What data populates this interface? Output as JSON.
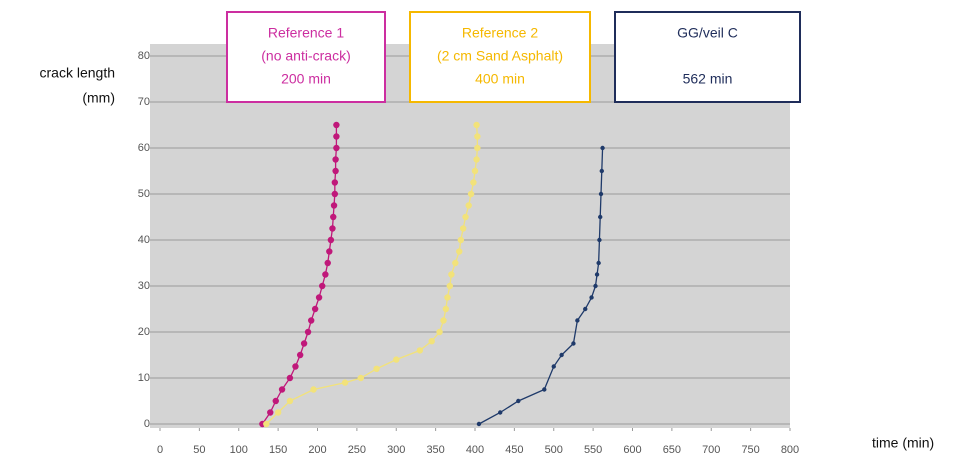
{
  "chart_data": {
    "type": "scatter-line",
    "y_label": [
      "crack length",
      "(mm)"
    ],
    "x_label": "time (min)",
    "xlim": [
      0,
      800
    ],
    "xticks": [
      0,
      50,
      100,
      150,
      200,
      250,
      300,
      350,
      400,
      450,
      500,
      550,
      600,
      650,
      700,
      750,
      800
    ],
    "ylim": [
      0,
      80
    ],
    "yticks": [
      0,
      10,
      20,
      30,
      40,
      50,
      60,
      70,
      80
    ],
    "grid": true,
    "series": [
      {
        "name": "Reference 1",
        "color": "#c0187a",
        "box_color": "#cc2ea0",
        "note": [
          "(no anti-crack)",
          "200 min"
        ],
        "x": [
          130,
          140,
          147,
          155,
          165,
          172,
          178,
          183,
          188,
          192,
          197,
          202,
          206,
          210,
          213,
          215,
          217,
          219,
          220,
          221,
          222,
          222,
          223,
          223,
          224,
          224,
          224
        ],
        "values": [
          0,
          2.5,
          5,
          7.5,
          10,
          12.5,
          15,
          17.5,
          20,
          22.5,
          25,
          27.5,
          30,
          32.5,
          35,
          37.5,
          40,
          42.5,
          45,
          47.5,
          50,
          52.5,
          55,
          57.5,
          60,
          62.5,
          65
        ]
      },
      {
        "name": "Reference 2",
        "color": "#f2e27a",
        "box_color": "#f5b800",
        "note": [
          "(2 cm Sand Asphalt)",
          "400 min"
        ],
        "x": [
          135,
          150,
          165,
          195,
          235,
          255,
          275,
          300,
          330,
          345,
          355,
          360,
          363,
          365,
          368,
          370,
          375,
          380,
          382,
          385,
          388,
          392,
          395,
          398,
          400,
          402,
          403,
          403,
          402
        ],
        "values": [
          0,
          2.5,
          5,
          7.5,
          9,
          10,
          12,
          14,
          16,
          18,
          20,
          22.5,
          25,
          27.5,
          30,
          32.5,
          35,
          37.5,
          40,
          42.5,
          45,
          47.5,
          50,
          52.5,
          55,
          57.5,
          60,
          62.5,
          65
        ]
      },
      {
        "name": "GG/veil C",
        "color": "#1f3a6a",
        "box_color": "#1f2d5a",
        "note": [
          "562 min"
        ],
        "x": [
          405,
          432,
          455,
          488,
          500,
          510,
          525,
          530,
          540,
          548,
          553,
          555,
          557,
          558,
          559,
          560,
          561,
          562
        ],
        "values": [
          0,
          2.5,
          5,
          7.5,
          12.5,
          15,
          17.5,
          22.5,
          25,
          27.5,
          30,
          32.5,
          35,
          40,
          45,
          50,
          55,
          60
        ]
      }
    ]
  }
}
